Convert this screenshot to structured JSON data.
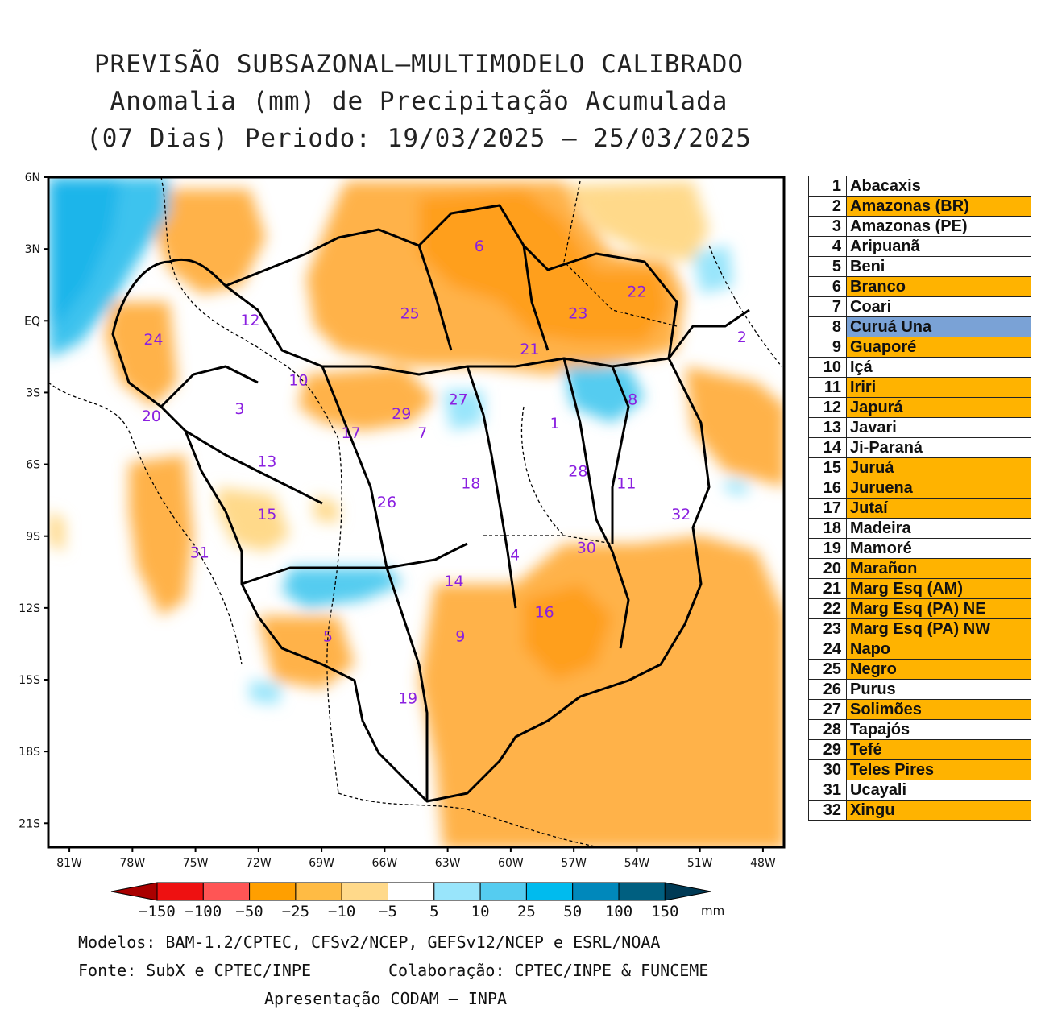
{
  "title": {
    "line1": "PREVISÃO SUBSAZONAL—MULTIMODELO CALIBRADO",
    "line2": "Anomalia (mm) de Precipitação Acumulada",
    "line3": "(07 Dias) Periodo: 19/03/2025 — 25/03/2025"
  },
  "map": {
    "lat_ticks": [
      "6N",
      "3N",
      "EQ",
      "3S",
      "6S",
      "9S",
      "12S",
      "15S",
      "18S",
      "21S"
    ],
    "lon_ticks": [
      "81W",
      "78W",
      "75W",
      "72W",
      "69W",
      "66W",
      "63W",
      "60W",
      "57W",
      "54W",
      "51W",
      "48W"
    ],
    "lon_range": [
      -82,
      -47
    ],
    "lat_range": [
      -22,
      6
    ],
    "basin_labels": [
      {
        "n": "1",
        "lon": -57.9,
        "lat": -4.5
      },
      {
        "n": "2",
        "lon": -49.0,
        "lat": -0.9
      },
      {
        "n": "3",
        "lon": -72.9,
        "lat": -3.9
      },
      {
        "n": "4",
        "lon": -59.8,
        "lat": -10.0
      },
      {
        "n": "5",
        "lon": -68.7,
        "lat": -13.4
      },
      {
        "n": "6",
        "lon": -61.5,
        "lat": 2.9
      },
      {
        "n": "7",
        "lon": -64.2,
        "lat": -4.9
      },
      {
        "n": "8",
        "lon": -54.2,
        "lat": -3.5
      },
      {
        "n": "9",
        "lon": -62.4,
        "lat": -13.4
      },
      {
        "n": "10",
        "lon": -70.1,
        "lat": -2.7
      },
      {
        "n": "11",
        "lon": -54.5,
        "lat": -7.0
      },
      {
        "n": "12",
        "lon": -72.4,
        "lat": -0.2
      },
      {
        "n": "13",
        "lon": -71.6,
        "lat": -6.1
      },
      {
        "n": "14",
        "lon": -62.7,
        "lat": -11.1
      },
      {
        "n": "15",
        "lon": -71.6,
        "lat": -8.3
      },
      {
        "n": "16",
        "lon": -58.4,
        "lat": -12.4
      },
      {
        "n": "17",
        "lon": -67.6,
        "lat": -4.9
      },
      {
        "n": "18",
        "lon": -61.9,
        "lat": -7.0
      },
      {
        "n": "19",
        "lon": -64.9,
        "lat": -16.0
      },
      {
        "n": "20",
        "lon": -77.1,
        "lat": -4.2
      },
      {
        "n": "21",
        "lon": -59.1,
        "lat": -1.4
      },
      {
        "n": "22",
        "lon": -54.0,
        "lat": 1.0
      },
      {
        "n": "23",
        "lon": -56.8,
        "lat": 0.1
      },
      {
        "n": "24",
        "lon": -77.0,
        "lat": -1.0
      },
      {
        "n": "25",
        "lon": -64.8,
        "lat": 0.1
      },
      {
        "n": "26",
        "lon": -65.9,
        "lat": -7.8
      },
      {
        "n": "27",
        "lon": -62.5,
        "lat": -3.5
      },
      {
        "n": "28",
        "lon": -56.8,
        "lat": -6.5
      },
      {
        "n": "29",
        "lon": -65.2,
        "lat": -4.1
      },
      {
        "n": "30",
        "lon": -56.4,
        "lat": -9.7
      },
      {
        "n": "31",
        "lon": -74.8,
        "lat": -9.9
      },
      {
        "n": "32",
        "lon": -51.9,
        "lat": -8.3
      }
    ]
  },
  "colorbar": {
    "labels": [
      "−150",
      "−100",
      "−50",
      "−25",
      "−10",
      "−5",
      "5",
      "10",
      "25",
      "50",
      "100",
      "150"
    ],
    "unit": "mm",
    "colors": [
      "#aa0000",
      "#ee1111",
      "#ff5555",
      "#ff9f00",
      "#ffbb44",
      "#ffd98a",
      "#ffffff",
      "#99e5fb",
      "#55ccf0",
      "#00bbee",
      "#0088bb",
      "#005f80",
      "#003a55"
    ]
  },
  "basins": [
    {
      "n": "1",
      "name": "Abacaxis",
      "highlight": "none"
    },
    {
      "n": "2",
      "name": "Amazonas (BR)",
      "highlight": "orange"
    },
    {
      "n": "3",
      "name": "Amazonas (PE)",
      "highlight": "none"
    },
    {
      "n": "4",
      "name": "Aripuanã",
      "highlight": "none"
    },
    {
      "n": "5",
      "name": "Beni",
      "highlight": "none"
    },
    {
      "n": "6",
      "name": "Branco",
      "highlight": "orange"
    },
    {
      "n": "7",
      "name": "Coari",
      "highlight": "none"
    },
    {
      "n": "8",
      "name": "Curuá Una",
      "highlight": "blue"
    },
    {
      "n": "9",
      "name": "Guaporé",
      "highlight": "orange"
    },
    {
      "n": "10",
      "name": "Içá",
      "highlight": "none"
    },
    {
      "n": "11",
      "name": "Iriri",
      "highlight": "orange"
    },
    {
      "n": "12",
      "name": "Japurá",
      "highlight": "orange"
    },
    {
      "n": "13",
      "name": "Javari",
      "highlight": "none"
    },
    {
      "n": "14",
      "name": "Ji-Paraná",
      "highlight": "none"
    },
    {
      "n": "15",
      "name": "Juruá",
      "highlight": "orange"
    },
    {
      "n": "16",
      "name": "Juruena",
      "highlight": "orange"
    },
    {
      "n": "17",
      "name": "Jutaí",
      "highlight": "orange"
    },
    {
      "n": "18",
      "name": "Madeira",
      "highlight": "none"
    },
    {
      "n": "19",
      "name": "Mamoré",
      "highlight": "none"
    },
    {
      "n": "20",
      "name": "Marañon",
      "highlight": "orange"
    },
    {
      "n": "21",
      "name": "Marg Esq (AM)",
      "highlight": "orange"
    },
    {
      "n": "22",
      "name": "Marg Esq (PA) NE",
      "highlight": "orange"
    },
    {
      "n": "23",
      "name": "Marg Esq (PA) NW",
      "highlight": "orange"
    },
    {
      "n": "24",
      "name": "Napo",
      "highlight": "orange"
    },
    {
      "n": "25",
      "name": "Negro",
      "highlight": "orange"
    },
    {
      "n": "26",
      "name": "Purus",
      "highlight": "none"
    },
    {
      "n": "27",
      "name": "Solimões",
      "highlight": "orange"
    },
    {
      "n": "28",
      "name": "Tapajós",
      "highlight": "none"
    },
    {
      "n": "29",
      "name": "Tefé",
      "highlight": "orange"
    },
    {
      "n": "30",
      "name": "Teles Pires",
      "highlight": "orange"
    },
    {
      "n": "31",
      "name": "Ucayali",
      "highlight": "none"
    },
    {
      "n": "32",
      "name": "Xingu",
      "highlight": "orange"
    }
  ],
  "highlight_colors": {
    "none": "#ffffff",
    "orange": "#ffb300",
    "blue": "#7aa2d6"
  },
  "footer": {
    "line1": "Modelos: BAM-1.2/CPTEC, CFSv2/NCEP, GEFSv12/NCEP e ESRL/NOAA",
    "line2a": "Fonte: SubX e CPTEC/INPE",
    "line2b": "Colaboração: CPTEC/INPE & FUNCEME",
    "line3": "Apresentação CODAM — INPA"
  }
}
